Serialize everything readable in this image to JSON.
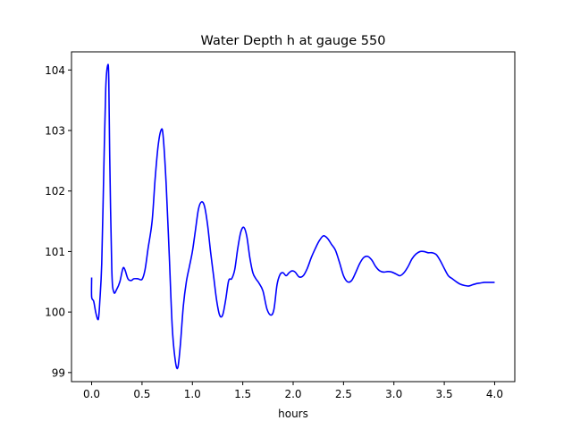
{
  "chart_data": {
    "type": "line",
    "title": "Water Depth h at gauge 550",
    "xlabel": "hours",
    "ylabel": "",
    "xlim": [
      -0.2,
      4.2
    ],
    "ylim": [
      98.85,
      104.3
    ],
    "xticks": [
      0.0,
      0.5,
      1.0,
      1.5,
      2.0,
      2.5,
      3.0,
      3.5,
      4.0
    ],
    "xtick_labels": [
      "0.0",
      "0.5",
      "1.0",
      "1.5",
      "2.0",
      "2.5",
      "3.0",
      "3.5",
      "4.0"
    ],
    "yticks": [
      99,
      100,
      101,
      102,
      103,
      104
    ],
    "ytick_labels": [
      "99",
      "100",
      "101",
      "102",
      "103",
      "104"
    ],
    "grid": false,
    "series": [
      {
        "color": "#0000ff",
        "x": [
          0.0,
          0.0,
          0.02,
          0.04,
          0.06,
          0.07,
          0.08,
          0.1,
          0.12,
          0.14,
          0.16,
          0.17,
          0.18,
          0.2,
          0.22,
          0.25,
          0.28,
          0.31,
          0.33,
          0.36,
          0.39,
          0.42,
          0.46,
          0.5,
          0.53,
          0.56,
          0.6,
          0.63,
          0.66,
          0.69,
          0.71,
          0.74,
          0.77,
          0.8,
          0.83,
          0.855,
          0.88,
          0.91,
          0.94,
          0.97,
          1.0,
          1.03,
          1.06,
          1.09,
          1.12,
          1.15,
          1.18,
          1.21,
          1.24,
          1.27,
          1.3,
          1.33,
          1.36,
          1.39,
          1.42,
          1.45,
          1.48,
          1.51,
          1.54,
          1.57,
          1.6,
          1.63,
          1.66,
          1.7,
          1.74,
          1.78,
          1.81,
          1.84,
          1.87,
          1.9,
          1.93,
          1.96,
          1.99,
          2.02,
          2.06,
          2.1,
          2.14,
          2.18,
          2.22,
          2.26,
          2.3,
          2.34,
          2.38,
          2.42,
          2.46,
          2.5,
          2.54,
          2.58,
          2.62,
          2.66,
          2.7,
          2.74,
          2.78,
          2.82,
          2.86,
          2.9,
          2.94,
          2.98,
          3.02,
          3.06,
          3.1,
          3.14,
          3.18,
          3.22,
          3.26,
          3.3,
          3.34,
          3.38,
          3.42,
          3.46,
          3.5,
          3.54,
          3.58,
          3.62,
          3.66,
          3.7,
          3.74,
          3.78,
          3.82,
          3.86,
          3.9,
          3.94,
          3.98,
          4.0
        ],
        "y": [
          100.57,
          100.25,
          100.18,
          100.0,
          99.88,
          99.92,
          100.15,
          100.8,
          102.3,
          103.7,
          104.08,
          103.85,
          102.5,
          100.7,
          100.33,
          100.38,
          100.5,
          100.72,
          100.7,
          100.55,
          100.52,
          100.55,
          100.55,
          100.54,
          100.7,
          101.05,
          101.5,
          102.2,
          102.75,
          103.01,
          102.9,
          102.1,
          100.95,
          99.75,
          99.2,
          99.08,
          99.45,
          100.1,
          100.5,
          100.75,
          101.0,
          101.35,
          101.7,
          101.82,
          101.75,
          101.45,
          101.0,
          100.6,
          100.2,
          99.95,
          99.95,
          100.2,
          100.52,
          100.55,
          100.7,
          101.05,
          101.32,
          101.4,
          101.25,
          100.9,
          100.65,
          100.55,
          100.48,
          100.35,
          100.05,
          99.95,
          100.05,
          100.45,
          100.62,
          100.65,
          100.6,
          100.65,
          100.68,
          100.66,
          100.58,
          100.6,
          100.72,
          100.9,
          101.05,
          101.18,
          101.26,
          101.22,
          101.12,
          101.02,
          100.82,
          100.6,
          100.5,
          100.52,
          100.65,
          100.8,
          100.9,
          100.92,
          100.86,
          100.75,
          100.68,
          100.66,
          100.67,
          100.66,
          100.63,
          100.6,
          100.65,
          100.75,
          100.88,
          100.96,
          101.0,
          101.0,
          100.98,
          100.98,
          100.95,
          100.85,
          100.72,
          100.6,
          100.55,
          100.5,
          100.46,
          100.44,
          100.43,
          100.45,
          100.47,
          100.48,
          100.49,
          100.49,
          100.49,
          100.49
        ]
      }
    ]
  }
}
